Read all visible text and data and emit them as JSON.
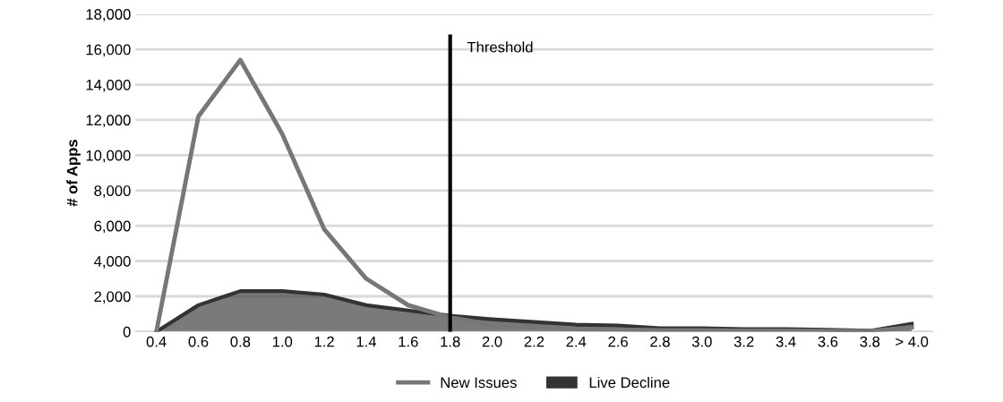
{
  "chart_data": {
    "type": "line",
    "ylabel": "# of Apps",
    "categories": [
      "0.4",
      "0.6",
      "0.8",
      "1.0",
      "1.2",
      "1.4",
      "1.6",
      "1.8",
      "2.0",
      "2.2",
      "2.4",
      "2.6",
      "2.8",
      "3.0",
      "3.2",
      "3.4",
      "3.6",
      "3.8",
      "> 4.0"
    ],
    "series": [
      {
        "name": "New Issues",
        "color": "#777777",
        "values": [
          0,
          12200,
          15400,
          11200,
          5800,
          3000,
          1500,
          800,
          400,
          250,
          150,
          120,
          80,
          70,
          50,
          50,
          40,
          30,
          250
        ]
      },
      {
        "name": "Live Decline",
        "type": "area",
        "color": "#333333",
        "values": [
          0,
          1500,
          2300,
          2300,
          2100,
          1500,
          1200,
          900,
          700,
          550,
          400,
          350,
          200,
          200,
          150,
          150,
          100,
          50,
          450
        ]
      }
    ],
    "ylim": [
      0,
      18000
    ],
    "yticks": [
      {
        "value": 0,
        "label": "0"
      },
      {
        "value": 2000,
        "label": "2,000"
      },
      {
        "value": 4000,
        "label": "4,000"
      },
      {
        "value": 6000,
        "label": "6,000"
      },
      {
        "value": 8000,
        "label": "8,000"
      },
      {
        "value": 10000,
        "label": "10,000"
      },
      {
        "value": 12000,
        "label": "12,000"
      },
      {
        "value": 14000,
        "label": "14,000"
      },
      {
        "value": 16000,
        "label": "16,000"
      },
      {
        "value": 18000,
        "label": "18,000"
      }
    ],
    "ref_lines": [
      {
        "axis": "x",
        "value": "1.8",
        "label": "Threshold",
        "color": "#000000"
      }
    ],
    "grid": "y",
    "legend": "bottom"
  }
}
